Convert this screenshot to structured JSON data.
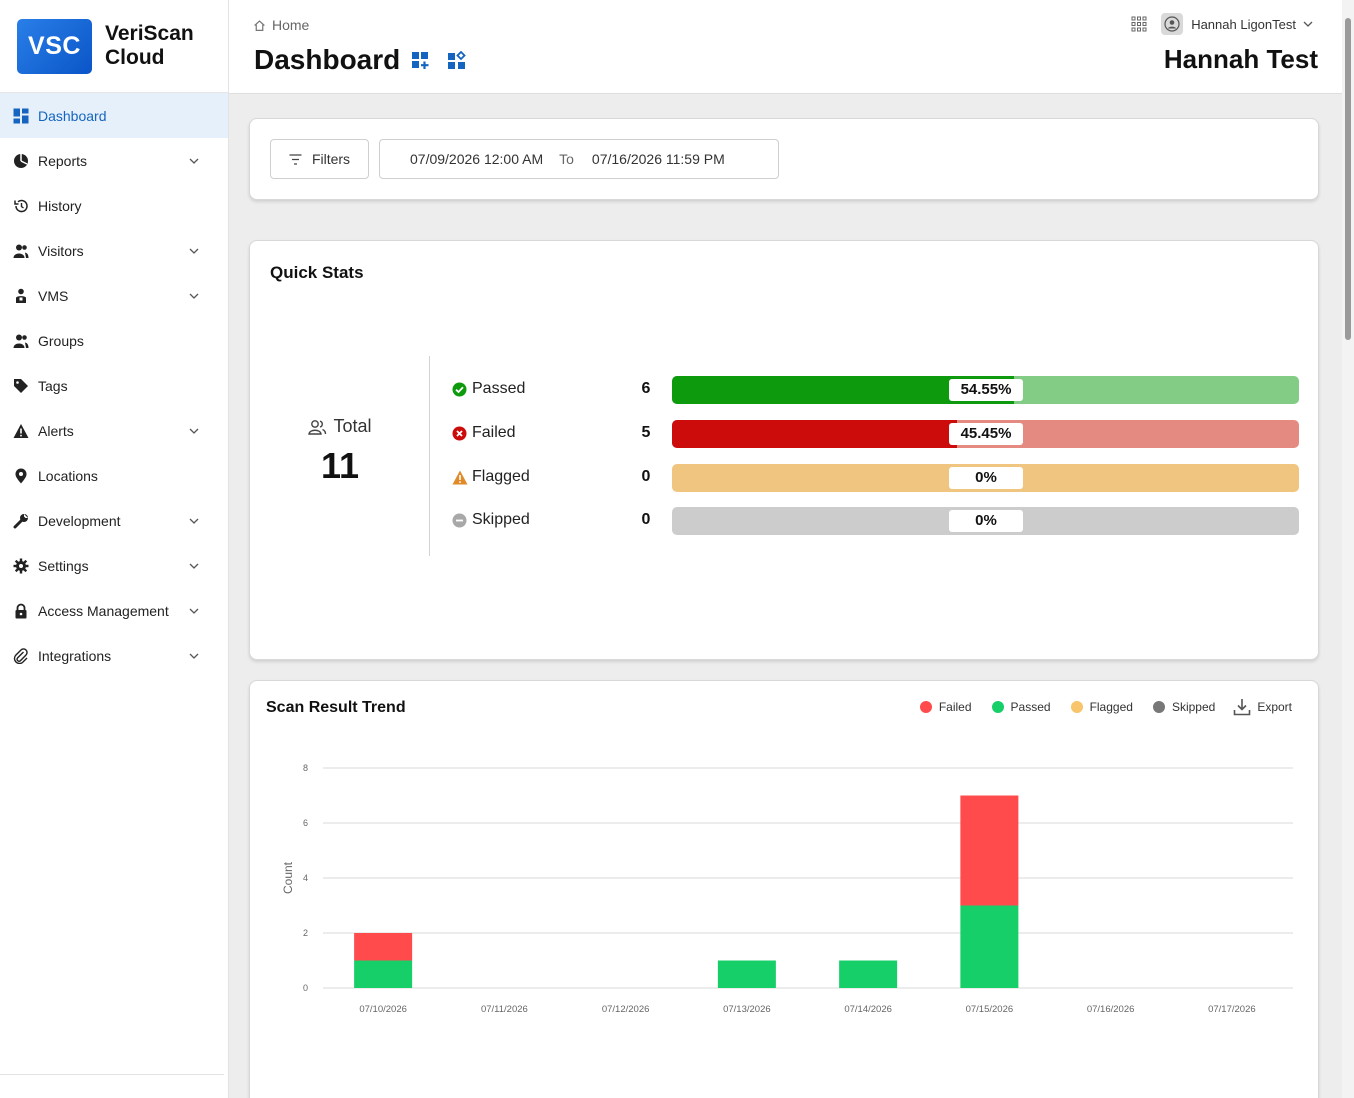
{
  "brand": {
    "logo": "VSC",
    "name_line1": "VeriScan",
    "name_line2": "Cloud"
  },
  "sidebar": {
    "items": [
      {
        "label": "Dashboard",
        "icon": "dashboard-icon",
        "active": true,
        "expandable": false
      },
      {
        "label": "Reports",
        "icon": "reports-icon",
        "expandable": true
      },
      {
        "label": "History",
        "icon": "history-icon",
        "expandable": false
      },
      {
        "label": "Visitors",
        "icon": "visitors-icon",
        "expandable": true
      },
      {
        "label": "VMS",
        "icon": "vms-icon",
        "expandable": true
      },
      {
        "label": "Groups",
        "icon": "groups-icon",
        "expandable": false
      },
      {
        "label": "Tags",
        "icon": "tag-icon",
        "expandable": false
      },
      {
        "label": "Alerts",
        "icon": "alert-icon",
        "expandable": true
      },
      {
        "label": "Locations",
        "icon": "location-pin-icon",
        "expandable": false
      },
      {
        "label": "Development",
        "icon": "wrench-icon",
        "expandable": true
      },
      {
        "label": "Settings",
        "icon": "gear-icon",
        "expandable": true
      },
      {
        "label": "Access Management",
        "icon": "lock-icon",
        "expandable": true
      },
      {
        "label": "Integrations",
        "icon": "paperclip-icon",
        "expandable": true
      }
    ]
  },
  "header": {
    "breadcrumb": "Home",
    "title": "Dashboard",
    "user_name": "Hannah LigonTest",
    "org_name": "Hannah Test"
  },
  "filters": {
    "button_label": "Filters",
    "start": "07/09/2026 12:00 AM",
    "to_label": "To",
    "end": "07/16/2026 11:59 PM"
  },
  "quick_stats": {
    "title": "Quick Stats",
    "total_label": "Total",
    "total_value": "11",
    "rows": [
      {
        "label": "Passed",
        "count": "6",
        "pct_label": "54.55%",
        "pct": 54.55,
        "color": "#0d9a0d",
        "track": "#82cc86",
        "icon": "check-circle-icon"
      },
      {
        "label": "Failed",
        "count": "5",
        "pct_label": "45.45%",
        "pct": 45.45,
        "color": "#cc0b0b",
        "track": "#e48a80",
        "icon": "x-circle-icon"
      },
      {
        "label": "Flagged",
        "count": "0",
        "pct_label": "0%",
        "pct": 0,
        "color": "#e8902a",
        "track": "#f0c580",
        "icon": "warning-triangle-icon"
      },
      {
        "label": "Skipped",
        "count": "0",
        "pct_label": "0%",
        "pct": 0,
        "color": "#9a9a9a",
        "track": "#cccccc",
        "icon": "minus-circle-icon"
      }
    ]
  },
  "trend": {
    "title": "Scan Result Trend",
    "legend": [
      {
        "label": "Failed",
        "color": "#ff4b4b"
      },
      {
        "label": "Passed",
        "color": "#17cf68"
      },
      {
        "label": "Flagged",
        "color": "#f8c46c"
      },
      {
        "label": "Skipped",
        "color": "#777777"
      }
    ],
    "export_label": "Export"
  },
  "chart_data": {
    "type": "bar",
    "stacked": true,
    "categories": [
      "07/10/2026",
      "07/11/2026",
      "07/12/2026",
      "07/13/2026",
      "07/14/2026",
      "07/15/2026",
      "07/16/2026",
      "07/17/2026"
    ],
    "series": [
      {
        "name": "Passed",
        "color": "#17cf68",
        "values": [
          1,
          0,
          0,
          1,
          1,
          3,
          0,
          0
        ]
      },
      {
        "name": "Failed",
        "color": "#ff4b4b",
        "values": [
          1,
          0,
          0,
          0,
          0,
          4,
          0,
          0
        ]
      },
      {
        "name": "Flagged",
        "color": "#f8c46c",
        "values": [
          0,
          0,
          0,
          0,
          0,
          0,
          0,
          0
        ]
      },
      {
        "name": "Skipped",
        "color": "#777777",
        "values": [
          0,
          0,
          0,
          0,
          0,
          0,
          0,
          0
        ]
      }
    ],
    "yticks": [
      "0",
      "2",
      "4",
      "6",
      "8"
    ],
    "ylim": [
      0,
      8
    ],
    "ylabel": "Count",
    "xlabel": "",
    "grid": true,
    "legend_position": "top-right"
  }
}
